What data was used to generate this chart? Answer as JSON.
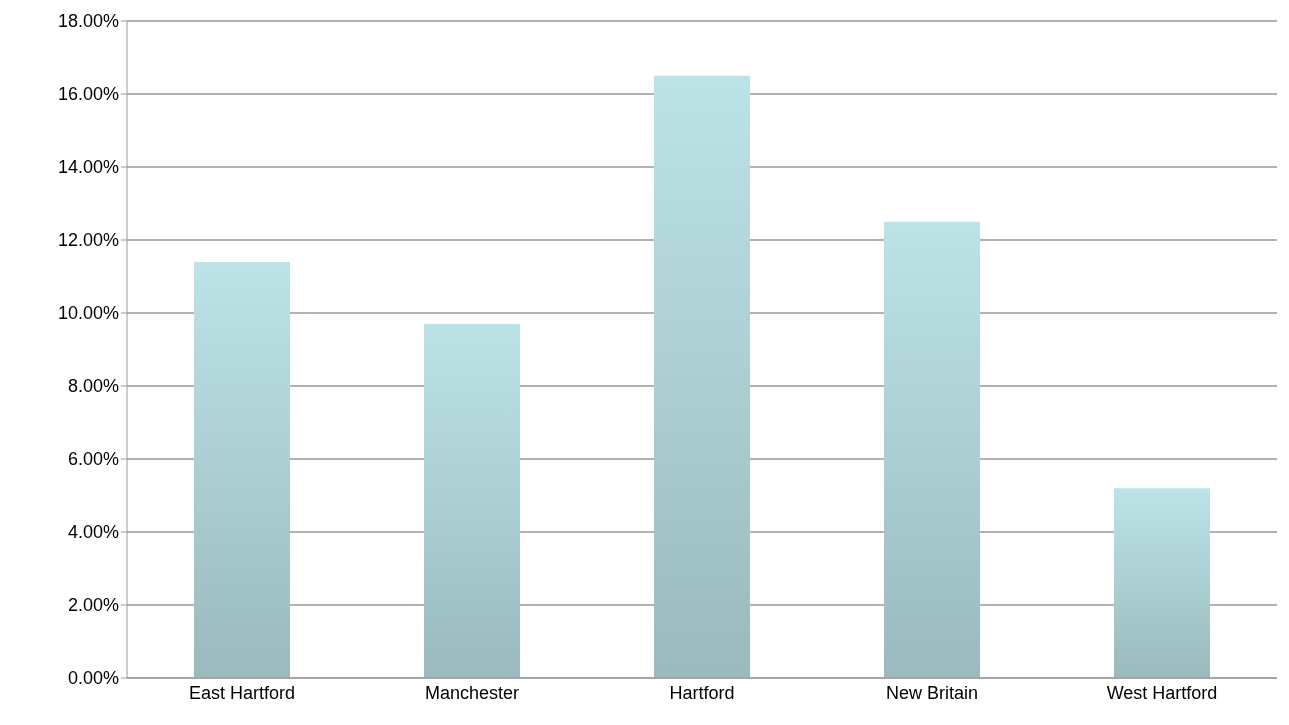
{
  "chart_data": {
    "type": "bar",
    "categories": [
      "East Hartford",
      "Manchester",
      "Hartford",
      "New Britain",
      "West Hartford"
    ],
    "values": [
      11.4,
      9.7,
      16.5,
      12.5,
      5.2
    ],
    "color": "#bce3e7",
    "ylim": [
      0,
      18
    ],
    "yticks": [
      {
        "value": 0,
        "label": "0.00%"
      },
      {
        "value": 2,
        "label": "2.00%"
      },
      {
        "value": 4,
        "label": "4.00%"
      },
      {
        "value": 6,
        "label": "6.00%"
      },
      {
        "value": 8,
        "label": "8.00%"
      },
      {
        "value": 10,
        "label": "10.00%"
      },
      {
        "value": 12,
        "label": "12.00%"
      },
      {
        "value": 14,
        "label": "14.00%"
      },
      {
        "value": 16,
        "label": "16.00%"
      },
      {
        "value": 18,
        "label": "18.00%"
      }
    ],
    "grid": "y",
    "legend": false
  }
}
